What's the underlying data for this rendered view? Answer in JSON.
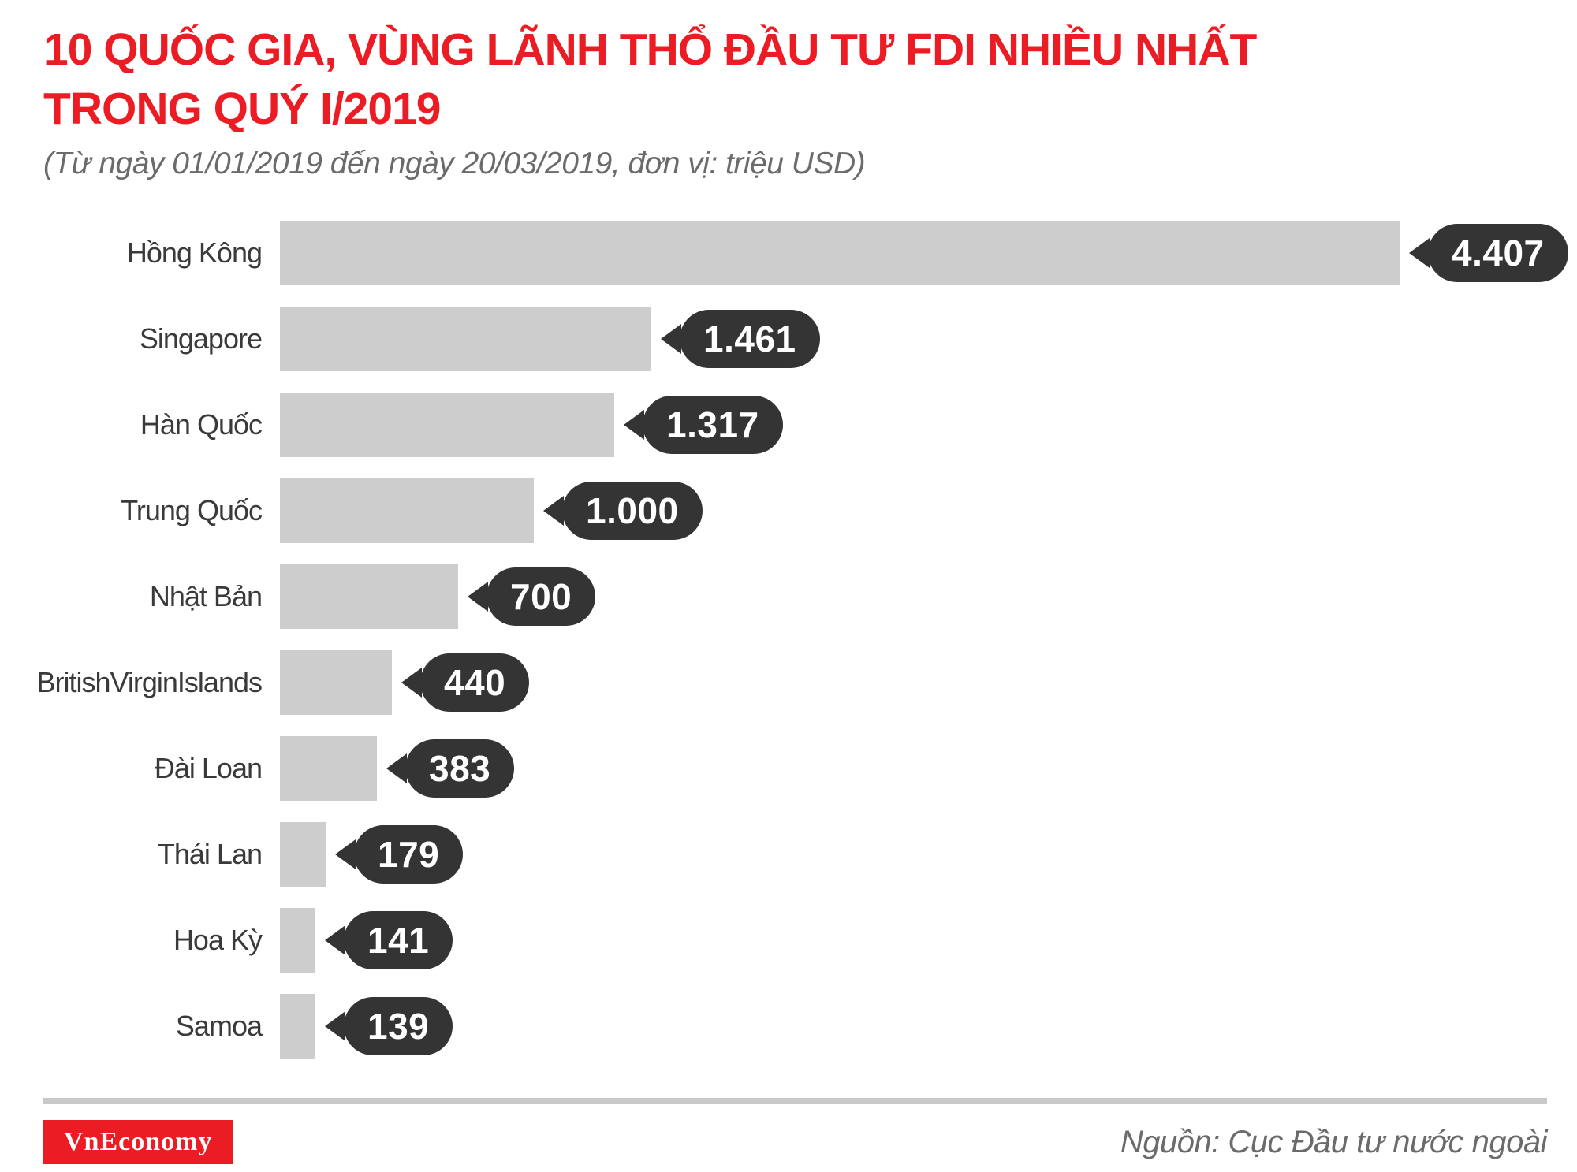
{
  "header": {
    "title": "10 QUỐC GIA, VÙNG LÃNH THỔ ĐẦU TƯ FDI NHIỀU NHẤT\nTRONG QUÝ I/2019",
    "subtitle": "(Từ ngày 01/01/2019 đến ngày 20/03/2019, đơn vị: triệu USD)"
  },
  "chart_data": {
    "type": "bar",
    "orientation": "horizontal",
    "title": "10 QUỐC GIA, VÙNG LÃNH THỔ ĐẦU TƯ FDI NHIỀU NHẤT TRONG QUÝ I/2019",
    "subtitle": "(Từ ngày 01/01/2019 đến ngày 20/03/2019, đơn vị: triệu USD)",
    "unit": "triệu USD",
    "categories": [
      "Hồng Kông",
      "Singapore",
      "Hàn Quốc",
      "Trung Quốc",
      "Nhật Bản",
      "BritishVirginIslands",
      "Đài Loan",
      "Thái Lan",
      "Hoa Kỳ",
      "Samoa"
    ],
    "values": [
      4407,
      1461,
      1317,
      1000,
      700,
      440,
      383,
      179,
      141,
      139
    ],
    "value_labels": [
      "4.407",
      "1.461",
      "1.317",
      "1.000",
      "700",
      "440",
      "383",
      "179",
      "141",
      "139"
    ],
    "xlim": [
      0,
      4407
    ],
    "grid": false,
    "legend": false,
    "bar_color": "#cdcdcd",
    "bubble_color": "#343434"
  },
  "colors": {
    "accent_red": "#ec1c24",
    "bar_gray": "#cdcdcd",
    "bubble_dark": "#343434",
    "label_text": "#3a3a3a",
    "muted_text": "#6b6b6d"
  },
  "footer": {
    "logo_text": "VnEconomy",
    "source": "Nguồn: Cục Đầu tư nước ngoài"
  }
}
